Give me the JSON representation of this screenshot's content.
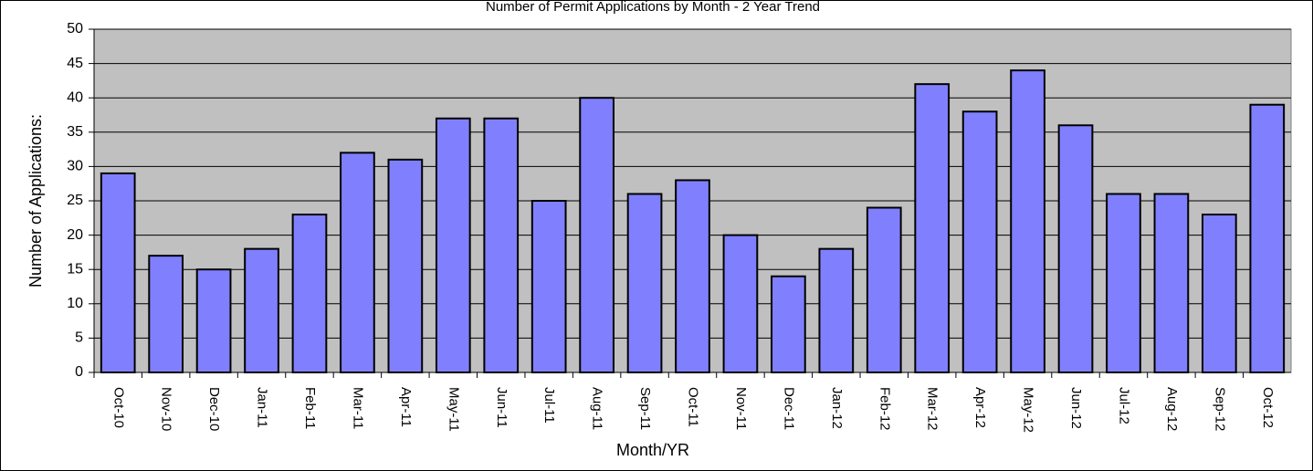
{
  "chart_data": {
    "type": "bar",
    "title": "Number of Permit Applications by Month - 2 Year Trend",
    "x_label": "Month/YR",
    "y_label": "Number of Applications:",
    "categories": [
      "Oct-10",
      "Nov-10",
      "Dec-10",
      "Jan-11",
      "Feb-11",
      "Mar-11",
      "Apr-11",
      "May-11",
      "Jun-11",
      "Jul-11",
      "Aug-11",
      "Sep-11",
      "Oct-11",
      "Nov-11",
      "Dec-11",
      "Jan-12",
      "Feb-12",
      "Mar-12",
      "Apr-12",
      "May-12",
      "Jun-12",
      "Jul-12",
      "Aug-12",
      "Sep-12",
      "Oct-12"
    ],
    "values": [
      29,
      17,
      15,
      18,
      23,
      32,
      31,
      37,
      37,
      25,
      40,
      26,
      28,
      20,
      14,
      18,
      24,
      42,
      38,
      44,
      36,
      26,
      26,
      23,
      39
    ],
    "color": "#8080ff",
    "ylim": [
      0,
      50
    ],
    "yticks": [
      0,
      5,
      10,
      15,
      20,
      25,
      30,
      35,
      40,
      45,
      50
    ],
    "grid": true
  }
}
